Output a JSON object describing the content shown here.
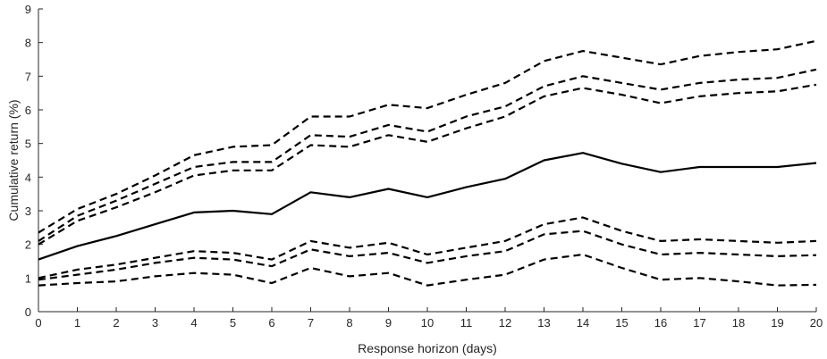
{
  "chart_data": {
    "type": "line",
    "title": "",
    "xlabel": "Response horizon (days)",
    "ylabel": "Cumulative return (%)",
    "xlim": [
      0,
      20
    ],
    "ylim": [
      0,
      9
    ],
    "x_ticks": [
      "0",
      "1",
      "2",
      "3",
      "4",
      "5",
      "6",
      "7",
      "8",
      "9",
      "10",
      "11",
      "12",
      "13",
      "14",
      "15",
      "16",
      "17",
      "18",
      "19",
      "20"
    ],
    "y_ticks": [
      "0",
      "1",
      "2",
      "3",
      "4",
      "5",
      "6",
      "7",
      "8",
      "9"
    ],
    "grid": false,
    "legend": "none",
    "x": [
      0,
      1,
      2,
      3,
      4,
      5,
      6,
      7,
      8,
      9,
      10,
      11,
      12,
      13,
      14,
      15,
      16,
      17,
      18,
      19,
      20
    ],
    "series": [
      {
        "style": "solid",
        "color": "#000000",
        "values": [
          1.55,
          1.95,
          2.25,
          2.6,
          2.95,
          3.0,
          2.9,
          3.55,
          3.4,
          3.65,
          3.4,
          3.7,
          3.95,
          4.5,
          4.72,
          4.4,
          4.15,
          4.3,
          4.3,
          4.3,
          4.42
        ]
      },
      {
        "style": "dashed",
        "color": "#000000",
        "values": [
          2.35,
          3.05,
          3.5,
          4.05,
          4.65,
          4.9,
          4.95,
          5.8,
          5.8,
          6.15,
          6.05,
          6.45,
          6.8,
          7.45,
          7.75,
          7.55,
          7.35,
          7.6,
          7.72,
          7.8,
          8.05
        ]
      },
      {
        "style": "dashed",
        "color": "#000000",
        "values": [
          2.1,
          2.85,
          3.3,
          3.8,
          4.3,
          4.45,
          4.45,
          5.25,
          5.2,
          5.55,
          5.35,
          5.8,
          6.1,
          6.7,
          7.0,
          6.8,
          6.6,
          6.8,
          6.9,
          6.95,
          7.2
        ]
      },
      {
        "style": "dashed",
        "color": "#000000",
        "values": [
          2.0,
          2.7,
          3.1,
          3.55,
          4.05,
          4.2,
          4.2,
          4.95,
          4.9,
          5.25,
          5.05,
          5.45,
          5.8,
          6.4,
          6.65,
          6.45,
          6.2,
          6.4,
          6.5,
          6.55,
          6.75
        ]
      },
      {
        "style": "dashed",
        "color": "#000000",
        "values": [
          1.0,
          1.25,
          1.4,
          1.6,
          1.8,
          1.75,
          1.55,
          2.1,
          1.9,
          2.05,
          1.7,
          1.9,
          2.1,
          2.6,
          2.8,
          2.4,
          2.1,
          2.15,
          2.1,
          2.05,
          2.1
        ]
      },
      {
        "style": "dashed",
        "color": "#000000",
        "values": [
          0.95,
          1.1,
          1.25,
          1.45,
          1.6,
          1.55,
          1.35,
          1.85,
          1.65,
          1.75,
          1.45,
          1.65,
          1.8,
          2.3,
          2.4,
          2.0,
          1.7,
          1.75,
          1.7,
          1.65,
          1.68
        ]
      },
      {
        "style": "dashed",
        "color": "#000000",
        "values": [
          0.78,
          0.85,
          0.9,
          1.05,
          1.15,
          1.1,
          0.85,
          1.3,
          1.05,
          1.15,
          0.78,
          0.95,
          1.1,
          1.55,
          1.7,
          1.3,
          0.95,
          1.0,
          0.9,
          0.78,
          0.8
        ]
      }
    ]
  }
}
